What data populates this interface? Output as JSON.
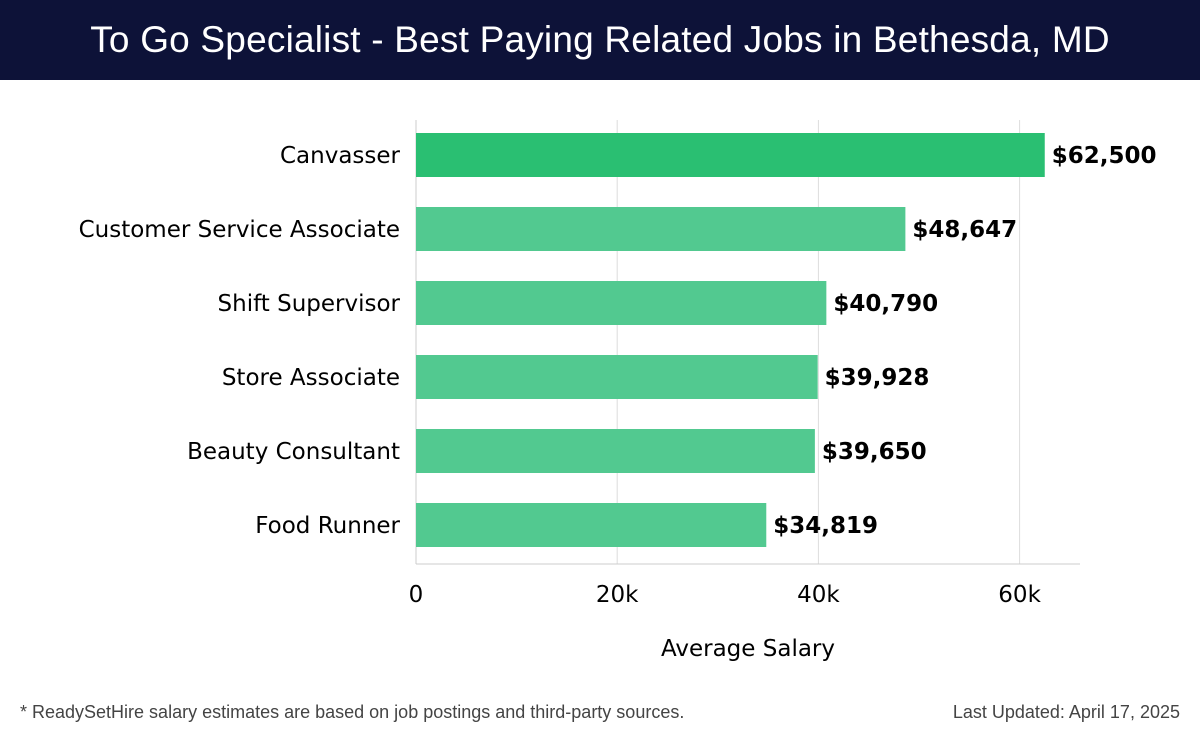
{
  "header": {
    "title": "To Go Specialist - Best Paying Related Jobs in Bethesda, MD"
  },
  "colors": {
    "header_bg": "#0d1238",
    "bar_top": "#2abf72",
    "bar": "#52c990",
    "text": "#000000",
    "grid": "#dddddd"
  },
  "chart_data": {
    "type": "bar",
    "orientation": "horizontal",
    "categories": [
      "Canvasser",
      "Customer Service Associate",
      "Shift Supervisor",
      "Store Associate",
      "Beauty Consultant",
      "Food Runner"
    ],
    "values": [
      62500,
      48647,
      40790,
      39928,
      39650,
      34819
    ],
    "value_labels": [
      "$62,500",
      "$48,647",
      "$40,790",
      "$39,928",
      "$39,650",
      "$34,819"
    ],
    "xlabel": "Average Salary",
    "xlim": [
      0,
      66000
    ],
    "xticks": [
      0,
      20000,
      40000,
      60000
    ],
    "xtick_labels": [
      "0",
      "20k",
      "40k",
      "60k"
    ],
    "grid": true
  },
  "footer": {
    "note": "* ReadySetHire salary estimates are based on job postings and third-party sources.",
    "updated": "Last Updated: April 17, 2025"
  }
}
